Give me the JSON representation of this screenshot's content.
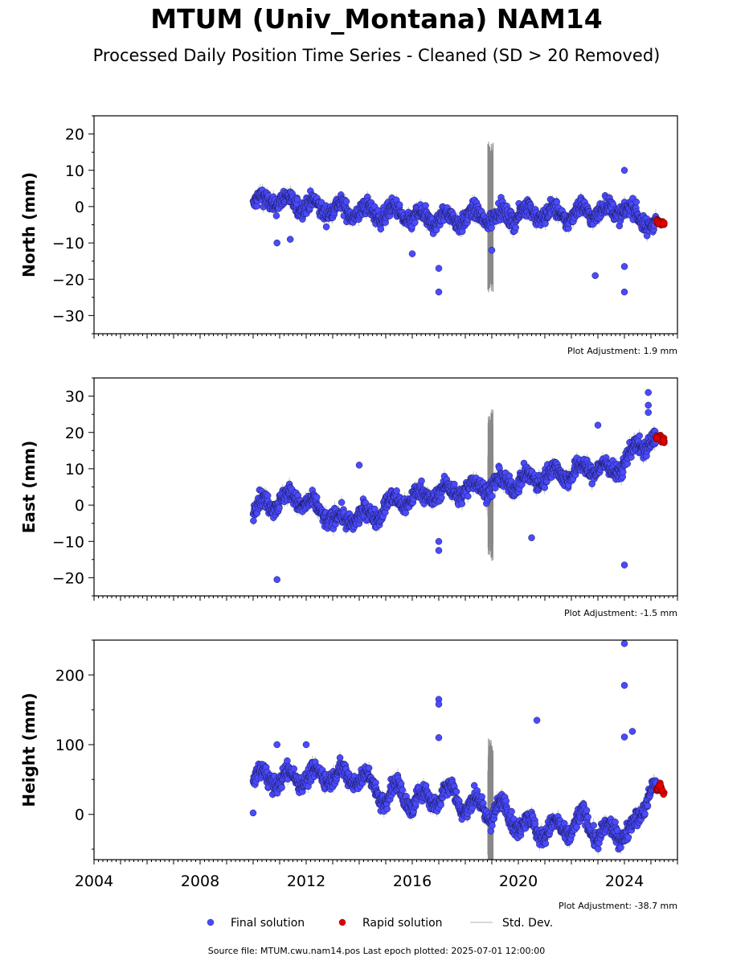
{
  "header": {
    "title": "MTUM (Univ_Montana) NAM14",
    "subtitle": "Processed Daily Position Time Series - Cleaned (SD > 20 Removed)"
  },
  "footer": {
    "source": "Source file: MTUM.cwu.nam14.pos  Last epoch plotted: 2025-07-01 12:00:00"
  },
  "legend": [
    {
      "label": "Final solution",
      "color": "#4a4aff",
      "kind": "marker"
    },
    {
      "label": "Rapid solution",
      "color": "#e00000",
      "kind": "marker"
    },
    {
      "label": "Std. Dev.",
      "color": "#cccccc",
      "kind": "line"
    }
  ],
  "chart_data": [
    {
      "type": "scatter",
      "ylabel": "North (mm)",
      "adjustment": "Plot Adjustment: 1.9 mm",
      "xlim": [
        2004,
        2026
      ],
      "ylim": [
        -35,
        25
      ],
      "yticks": [
        20,
        10,
        0,
        -10,
        -20,
        -30
      ],
      "series": [
        {
          "name": "Final solution",
          "color": "#4a4aff",
          "x": [
            2010.0,
            2010.5,
            2011.0,
            2011.5,
            2012.0,
            2012.5,
            2013.0,
            2013.5,
            2014.0,
            2014.5,
            2015.0,
            2015.5,
            2016.0,
            2016.5,
            2017.0,
            2017.5,
            2018.0,
            2018.5,
            2019.0,
            2019.5,
            2020.0,
            2020.5,
            2021.0,
            2021.5,
            2022.0,
            2022.5,
            2023.0,
            2023.5,
            2024.0,
            2024.5,
            2025.0
          ],
          "y": [
            1.0,
            1.5,
            2.0,
            0.5,
            1.0,
            -1.0,
            0.0,
            -1.5,
            -1.0,
            -2.0,
            -1.5,
            -2.0,
            -3.0,
            -3.5,
            -3.0,
            -3.5,
            -3.0,
            -2.5,
            -3.0,
            -2.5,
            -2.0,
            -1.5,
            -2.0,
            -2.0,
            -2.5,
            -1.0,
            -1.5,
            -1.0,
            -0.5,
            -3.0,
            -4.5
          ]
        },
        {
          "name": "Rapid solution",
          "color": "#e00000",
          "x": [
            2025.25,
            2025.35,
            2025.45
          ],
          "y": [
            -4.0,
            -5.0,
            -4.5
          ]
        }
      ],
      "outliers": {
        "x": [
          2010.9,
          2011.4,
          2017.0,
          2017.0,
          2019.0,
          2022.9,
          2024.0,
          2024.0,
          2024.0,
          2016.0
        ],
        "y": [
          -10.0,
          -9.0,
          -23.5,
          -17.0,
          -12.0,
          -19.0,
          -23.5,
          -16.5,
          10.0,
          -13.0
        ]
      }
    },
    {
      "type": "scatter",
      "ylabel": "East (mm)",
      "adjustment": "Plot Adjustment: -1.5 mm",
      "xlim": [
        2004,
        2026
      ],
      "ylim": [
        -25,
        35
      ],
      "yticks": [
        30,
        20,
        10,
        0,
        -10,
        -20
      ],
      "series": [
        {
          "name": "Final solution",
          "color": "#4a4aff",
          "x": [
            2010.0,
            2010.5,
            2011.0,
            2011.5,
            2012.0,
            2012.5,
            2013.0,
            2013.5,
            2014.0,
            2014.5,
            2015.0,
            2015.5,
            2016.0,
            2016.5,
            2017.0,
            2017.5,
            2018.0,
            2018.5,
            2019.0,
            2019.5,
            2020.0,
            2020.5,
            2021.0,
            2021.5,
            2022.0,
            2022.5,
            2023.0,
            2023.5,
            2024.0,
            2024.5,
            2025.0
          ],
          "y": [
            -1.0,
            0.5,
            1.5,
            2.0,
            1.0,
            -2.0,
            -3.0,
            -5.0,
            -2.0,
            -4.0,
            1.0,
            0.0,
            3.0,
            2.0,
            4.0,
            3.5,
            4.5,
            5.0,
            5.5,
            6.0,
            6.5,
            7.0,
            8.0,
            9.0,
            8.5,
            10.0,
            10.5,
            9.0,
            12.0,
            16.0,
            18.0
          ]
        },
        {
          "name": "Rapid solution",
          "color": "#e00000",
          "x": [
            2025.25,
            2025.35,
            2025.45
          ],
          "y": [
            18.5,
            19.0,
            17.5
          ]
        }
      ],
      "outliers": {
        "x": [
          2010.9,
          2014.0,
          2017.0,
          2017.0,
          2020.5,
          2023.0,
          2024.0,
          2024.9,
          2024.9,
          2024.9
        ],
        "y": [
          -20.5,
          11.0,
          -12.5,
          -10.0,
          -9.0,
          22.0,
          -16.5,
          31.0,
          27.5,
          25.5
        ]
      }
    },
    {
      "type": "scatter",
      "ylabel": "Height (mm)",
      "adjustment": "Plot Adjustment: -38.7 mm",
      "xlim": [
        2004,
        2026
      ],
      "ylim": [
        -65,
        250
      ],
      "yticks": [
        200,
        100,
        0
      ],
      "xticks": [
        2004,
        2008,
        2012,
        2016,
        2020,
        2024
      ],
      "series": [
        {
          "name": "Final solution",
          "color": "#4a4aff",
          "x": [
            2010.0,
            2010.5,
            2011.0,
            2011.5,
            2012.0,
            2012.5,
            2013.0,
            2013.5,
            2014.0,
            2014.5,
            2015.0,
            2015.5,
            2016.0,
            2016.5,
            2017.0,
            2017.5,
            2018.0,
            2018.5,
            2019.0,
            2019.5,
            2020.0,
            2020.5,
            2021.0,
            2021.5,
            2022.0,
            2022.5,
            2023.0,
            2023.5,
            2024.0,
            2024.5,
            2025.0
          ],
          "y": [
            52,
            55,
            48,
            55,
            52,
            58,
            55,
            56,
            52,
            45,
            20,
            40,
            10,
            30,
            20,
            40,
            5,
            20,
            -5,
            15,
            -20,
            -10,
            -30,
            -15,
            -25,
            0,
            -35,
            -20,
            -30,
            -10,
            40
          ]
        },
        {
          "name": "Rapid solution",
          "color": "#e00000",
          "x": [
            2025.25,
            2025.35,
            2025.45
          ],
          "y": [
            35,
            42,
            30
          ]
        }
      ],
      "outliers": {
        "x": [
          2010.0,
          2010.9,
          2012.0,
          2017.0,
          2017.0,
          2017.0,
          2020.7,
          2024.0,
          2024.0,
          2024.0,
          2024.3
        ],
        "y": [
          2,
          100,
          100,
          165,
          158,
          110,
          135,
          245,
          185,
          111,
          119
        ]
      }
    }
  ]
}
